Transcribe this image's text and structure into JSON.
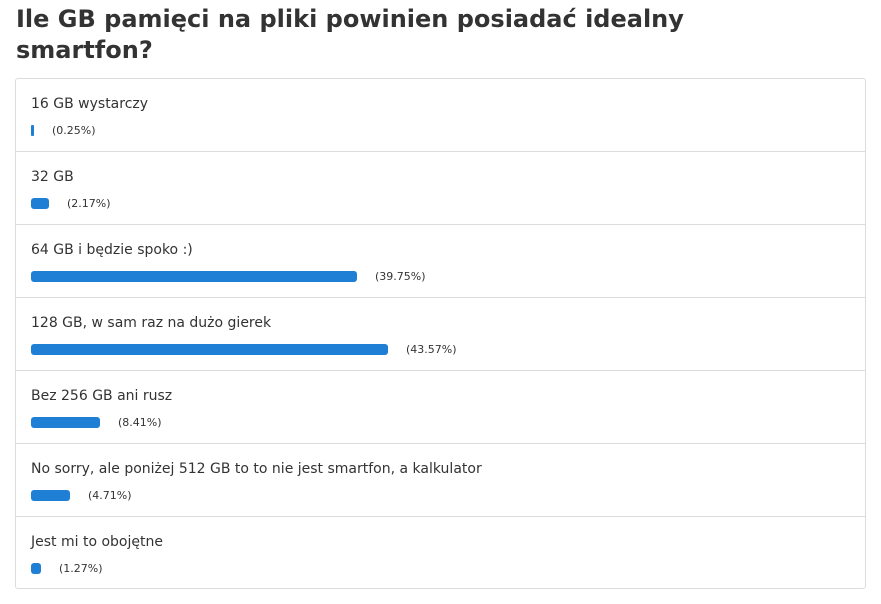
{
  "poll": {
    "title": "Ile GB pamięci na pliki powinien posiadać idealny smartfon?",
    "bar_color": "#1e7fd4",
    "options": [
      {
        "label": "16 GB wystarczy",
        "percent_text": "(0.25%)",
        "percent": 0.25
      },
      {
        "label": "32 GB",
        "percent_text": "(2.17%)",
        "percent": 2.17
      },
      {
        "label": "64 GB i będzie spoko :)",
        "percent_text": "(39.75%)",
        "percent": 39.75
      },
      {
        "label": "128 GB, w sam raz na dużo gierek",
        "percent_text": "(43.57%)",
        "percent": 43.57
      },
      {
        "label": "Bez 256 GB ani rusz",
        "percent_text": "(8.41%)",
        "percent": 8.41
      },
      {
        "label": "No sorry, ale poniżej 512 GB to to nie jest smartfon, a kalkulator",
        "percent_text": "(4.71%)",
        "percent": 4.71
      },
      {
        "label": "Jest mi to obojętne",
        "percent_text": "(1.27%)",
        "percent": 1.27
      }
    ]
  }
}
